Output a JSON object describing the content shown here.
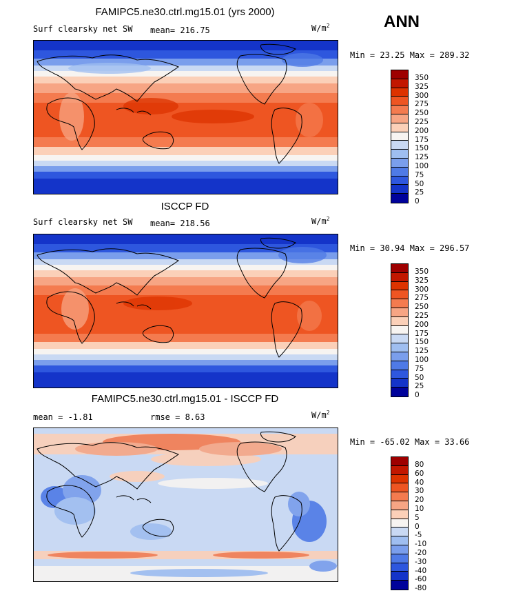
{
  "season": "ANN",
  "panels": [
    {
      "title": "FAMIPC5.ne30.ctrl.mg15.01 (yrs 2000)",
      "left_label": "Surf clearsky net SW",
      "mid_label": "mean= 216.75",
      "units": "W/m",
      "units_sup": "2",
      "minmax": "Min =  23.25 Max = 289.32",
      "levels": [
        "350",
        "325",
        "300",
        "275",
        "250",
        "225",
        "200",
        "175",
        "150",
        "125",
        "100",
        "75",
        "50",
        "25",
        "0"
      ],
      "colors": [
        "#9e0000",
        "#c21700",
        "#dd3300",
        "#ee5522",
        "#f47b4f",
        "#f7a584",
        "#fbd0b8",
        "#f7f4f1",
        "#c9d9f3",
        "#9fbef0",
        "#7a9eec",
        "#4f7ae6",
        "#2e57de",
        "#1434c9",
        "#00029b"
      ]
    },
    {
      "title": "ISCCP FD",
      "left_label": "Surf clearsky net SW",
      "mid_label": "mean= 218.56",
      "units": "W/m",
      "units_sup": "2",
      "minmax": "Min =  30.94 Max = 296.57",
      "levels": [
        "350",
        "325",
        "300",
        "275",
        "250",
        "225",
        "200",
        "175",
        "150",
        "125",
        "100",
        "75",
        "50",
        "25",
        "0"
      ],
      "colors": [
        "#9e0000",
        "#c21700",
        "#dd3300",
        "#ee5522",
        "#f47b4f",
        "#f7a584",
        "#fbd0b8",
        "#f7f4f1",
        "#c9d9f3",
        "#9fbef0",
        "#7a9eec",
        "#4f7ae6",
        "#2e57de",
        "#1434c9",
        "#00029b"
      ]
    },
    {
      "title": "FAMIPC5.ne30.ctrl.mg15.01 - ISCCP FD",
      "left_label": "mean =  -1.81",
      "mid_label": "rmse =   8.63",
      "units": "W/m",
      "units_sup": "2",
      "minmax": "Min = -65.02 Max =  33.66",
      "levels": [
        "80",
        "60",
        "40",
        "30",
        "20",
        "10",
        "5",
        "0",
        "-5",
        "-10",
        "-20",
        "-30",
        "-40",
        "-60",
        "-80"
      ],
      "colors": [
        "#9e0000",
        "#c21700",
        "#dd3300",
        "#ee5522",
        "#f47b4f",
        "#f7a584",
        "#fbd0b8",
        "#f7f4f1",
        "#c9d9f3",
        "#9fbef0",
        "#7a9eec",
        "#4f7ae6",
        "#2e57de",
        "#1434c9",
        "#00029b"
      ]
    }
  ]
}
